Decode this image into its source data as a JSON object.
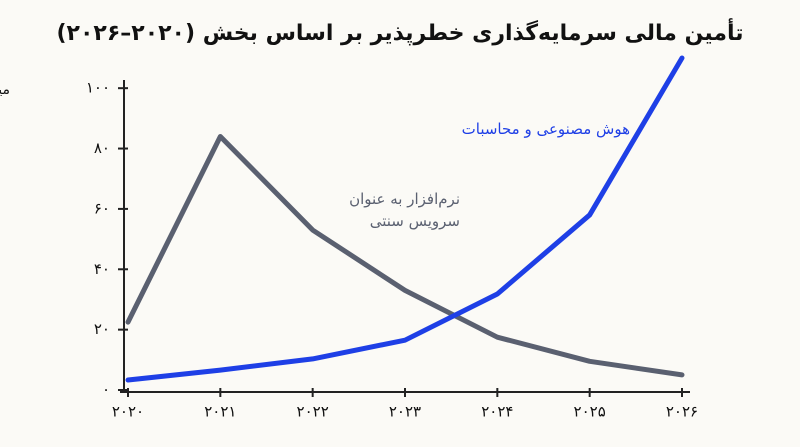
{
  "chart_data": {
    "type": "line",
    "title": "تأمین مالی سرمایه‌گذاری خطرپذیر بر اساس بخش (۲۰۲۰–۲۰۲۶)",
    "y_label": "میلیارد دلار",
    "categories": [
      "۲۰۲۰",
      "۲۰۲۱",
      "۲۰۲۲",
      "۲۰۲۳",
      "۲۰۲۴",
      "۲۰۲۵",
      "۲۰۲۶"
    ],
    "series": [
      {
        "name": "نرم‌افزار به عنوان سرویس سنتی",
        "color": "#5a6070",
        "values": [
          22.5,
          84,
          53,
          33,
          17.5,
          9.5,
          5
        ]
      },
      {
        "name": "هوش مصنوعی و محاسبات",
        "color": "#1e3fe6",
        "values": [
          3.3,
          6.6,
          10.3,
          16.5,
          31.8,
          58,
          110
        ]
      }
    ],
    "ylim": [
      0,
      110
    ],
    "yticks": [
      {
        "value": 0,
        "label": "۰"
      },
      {
        "value": 20,
        "label": "۲۰"
      },
      {
        "value": 40,
        "label": "۴۰"
      },
      {
        "value": 60,
        "label": "۶۰"
      },
      {
        "value": 80,
        "label": "۸۰"
      },
      {
        "value": 100,
        "label": "۱۰۰"
      }
    ]
  }
}
